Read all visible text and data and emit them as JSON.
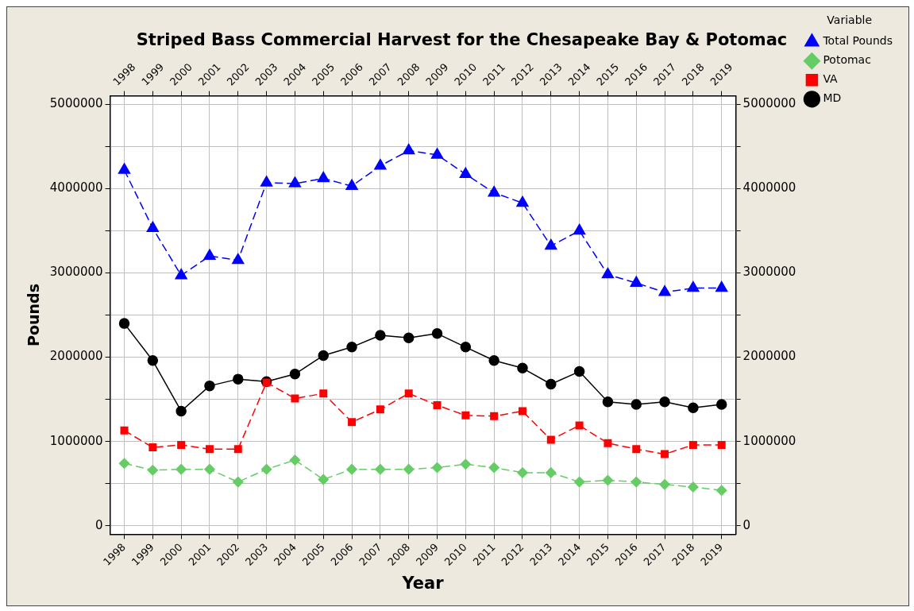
{
  "chart_data": {
    "type": "line",
    "title": "Striped Bass Commercial Harvest for the Chesapeake Bay & Potomac",
    "xlabel": "Year",
    "ylabel": "Pounds",
    "legend_title": "Variable",
    "x": [
      1998,
      1999,
      2000,
      2001,
      2002,
      2003,
      2004,
      2005,
      2006,
      2007,
      2008,
      2009,
      2010,
      2011,
      2012,
      2013,
      2014,
      2015,
      2016,
      2017,
      2018,
      2019
    ],
    "series": [
      {
        "name": "MD",
        "color": "#000000",
        "marker": "circle",
        "line_style": "solid",
        "values": [
          2400000,
          1960000,
          1360000,
          1660000,
          1740000,
          1710000,
          1800000,
          2020000,
          2120000,
          2260000,
          2230000,
          2280000,
          2120000,
          1960000,
          1870000,
          1680000,
          1830000,
          1470000,
          1440000,
          1470000,
          1400000,
          1440000
        ]
      },
      {
        "name": "VA",
        "color": "#ff0000",
        "marker": "square",
        "line_style": "dashed",
        "values": [
          1130000,
          930000,
          960000,
          910000,
          910000,
          1700000,
          1510000,
          1570000,
          1230000,
          1380000,
          1570000,
          1430000,
          1310000,
          1300000,
          1360000,
          1020000,
          1190000,
          980000,
          910000,
          850000,
          960000,
          960000
        ]
      },
      {
        "name": "Potomac",
        "color": "#66cc66",
        "marker": "diamond",
        "line_style": "dashed",
        "values": [
          740000,
          660000,
          670000,
          670000,
          520000,
          670000,
          780000,
          550000,
          670000,
          670000,
          670000,
          690000,
          730000,
          690000,
          630000,
          630000,
          520000,
          540000,
          520000,
          490000,
          460000,
          420000
        ]
      },
      {
        "name": "Total Pounds",
        "color": "#0000ff",
        "marker": "triangle",
        "line_style": "dashed",
        "values": [
          4220000,
          3530000,
          2970000,
          3200000,
          3150000,
          4070000,
          4060000,
          4120000,
          4030000,
          4270000,
          4450000,
          4400000,
          4170000,
          3950000,
          3830000,
          3320000,
          3500000,
          2980000,
          2880000,
          2770000,
          2820000,
          2820000
        ]
      }
    ],
    "xlim": [
      1997.5,
      2019.5
    ],
    "xticks": [
      1998,
      1999,
      2000,
      2001,
      2002,
      2003,
      2004,
      2005,
      2006,
      2007,
      2008,
      2009,
      2010,
      2011,
      2012,
      2013,
      2014,
      2015,
      2016,
      2017,
      2018,
      2019
    ],
    "x2lim": [
      1997.5,
      2019.5
    ],
    "x2ticks": [
      1998,
      1999,
      2000,
      2001,
      2002,
      2003,
      2004,
      2005,
      2006,
      2007,
      2008,
      2009,
      2010,
      2011,
      2012,
      2013,
      2014,
      2015,
      2016,
      2017,
      2018,
      2019
    ],
    "ylim": [
      -100000,
      5100000
    ],
    "yticks": [
      0,
      {
        "value": 500000,
        "label": null
      },
      1000000,
      {
        "value": 1500000,
        "label": null
      },
      2000000,
      {
        "value": 2500000,
        "label": null
      },
      3000000,
      {
        "value": 3500000,
        "label": null
      },
      4000000,
      {
        "value": 4500000,
        "label": null
      },
      5000000
    ],
    "y2lim": [
      -100000,
      5100000
    ],
    "y2ticks": [
      0,
      {
        "value": 500000,
        "label": null
      },
      1000000,
      {
        "value": 1500000,
        "label": null
      },
      2000000,
      {
        "value": 2500000,
        "label": null
      },
      3000000,
      {
        "value": 3500000,
        "label": null
      },
      4000000,
      {
        "value": 4500000,
        "label": null
      },
      5000000
    ],
    "grid": true,
    "legend": "top right"
  }
}
